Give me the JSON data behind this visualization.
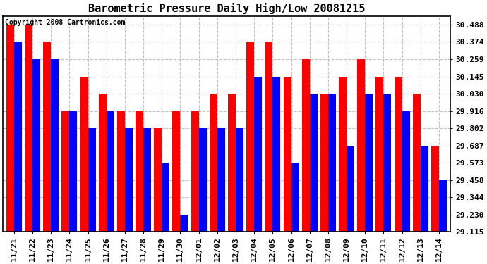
{
  "title": "Barometric Pressure Daily High/Low 20081215",
  "copyright": "Copyright 2008 Cartronics.com",
  "categories": [
    "11/21",
    "11/22",
    "11/23",
    "11/24",
    "11/25",
    "11/26",
    "11/27",
    "11/28",
    "11/29",
    "11/30",
    "12/01",
    "12/02",
    "12/03",
    "12/04",
    "12/05",
    "12/06",
    "12/07",
    "12/08",
    "12/09",
    "12/10",
    "12/11",
    "12/12",
    "12/13",
    "12/14"
  ],
  "highs": [
    30.488,
    30.488,
    30.374,
    29.916,
    30.145,
    30.03,
    29.916,
    29.916,
    29.802,
    29.916,
    29.916,
    30.03,
    30.03,
    30.374,
    30.374,
    30.145,
    30.259,
    30.03,
    30.145,
    30.259,
    30.145,
    30.145,
    30.03,
    29.687
  ],
  "lows": [
    30.374,
    30.259,
    30.259,
    29.916,
    29.802,
    29.916,
    29.802,
    29.802,
    29.573,
    29.23,
    29.802,
    29.802,
    29.802,
    30.145,
    30.145,
    29.573,
    30.03,
    30.03,
    29.687,
    30.03,
    30.03,
    29.916,
    29.687,
    29.458
  ],
  "high_color": "#ff0000",
  "low_color": "#0000ff",
  "bg_color": "#ffffff",
  "grid_color": "#c0c0c0",
  "yticks": [
    29.115,
    29.23,
    29.344,
    29.458,
    29.573,
    29.687,
    29.802,
    29.916,
    30.03,
    30.145,
    30.259,
    30.374,
    30.488
  ],
  "ymin": 29.115,
  "ymax": 30.545,
  "bar_width": 0.42,
  "title_fontsize": 11,
  "tick_fontsize": 8,
  "copyright_fontsize": 7
}
